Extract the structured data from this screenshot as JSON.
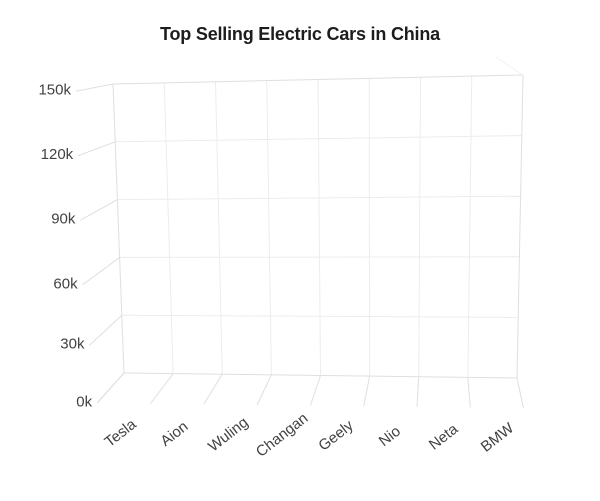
{
  "title": "Top Selling Electric Cars in China",
  "chart_data": {
    "type": "bar",
    "variant": "3d-column-perspective",
    "title": "Top Selling Electric Cars in China",
    "categories": [
      "Tesla",
      "Aion",
      "Wuling",
      "Changan",
      "Geely",
      "Nio",
      "Neta",
      "BMW"
    ],
    "values": [
      0,
      0,
      0,
      0,
      0,
      0,
      0,
      0
    ],
    "values_note": "No columns are rendered in this frame; all bars are at zero height (empty 3D plot area only)",
    "xlabel": "",
    "ylabel": "",
    "y_axis": {
      "ticks": [
        "150k",
        "120k",
        "90k",
        "60k",
        "30k",
        "0k"
      ],
      "min": 0,
      "max": 150000,
      "tick_step": 30000
    },
    "grid": true,
    "legend": false,
    "background_color": "#ffffff",
    "grid_color_inner": "#ececec",
    "grid_color_outer": "#dfdfdf",
    "label_color": "#424242",
    "title_color": "#1d1d1d"
  }
}
